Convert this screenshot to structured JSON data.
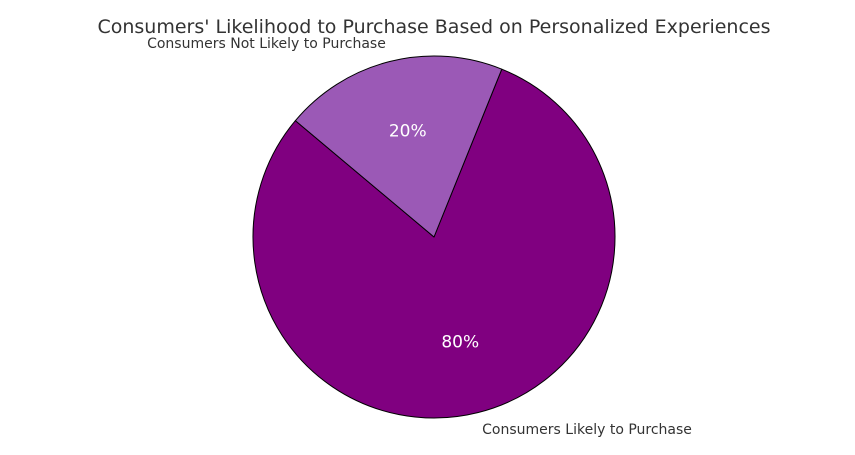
{
  "chart_data": {
    "type": "pie",
    "title": "Consumers' Likelihood to Purchase Based on Personalized Experiences",
    "categories": [
      "Consumers Likely to Purchase",
      "Consumers Not Likely to Purchase"
    ],
    "values": [
      80,
      20
    ],
    "percent_labels": [
      "80%",
      "20%"
    ],
    "colors": [
      "#800080",
      "#9b59b6"
    ],
    "edge_color": "#000000",
    "legend": "none"
  }
}
